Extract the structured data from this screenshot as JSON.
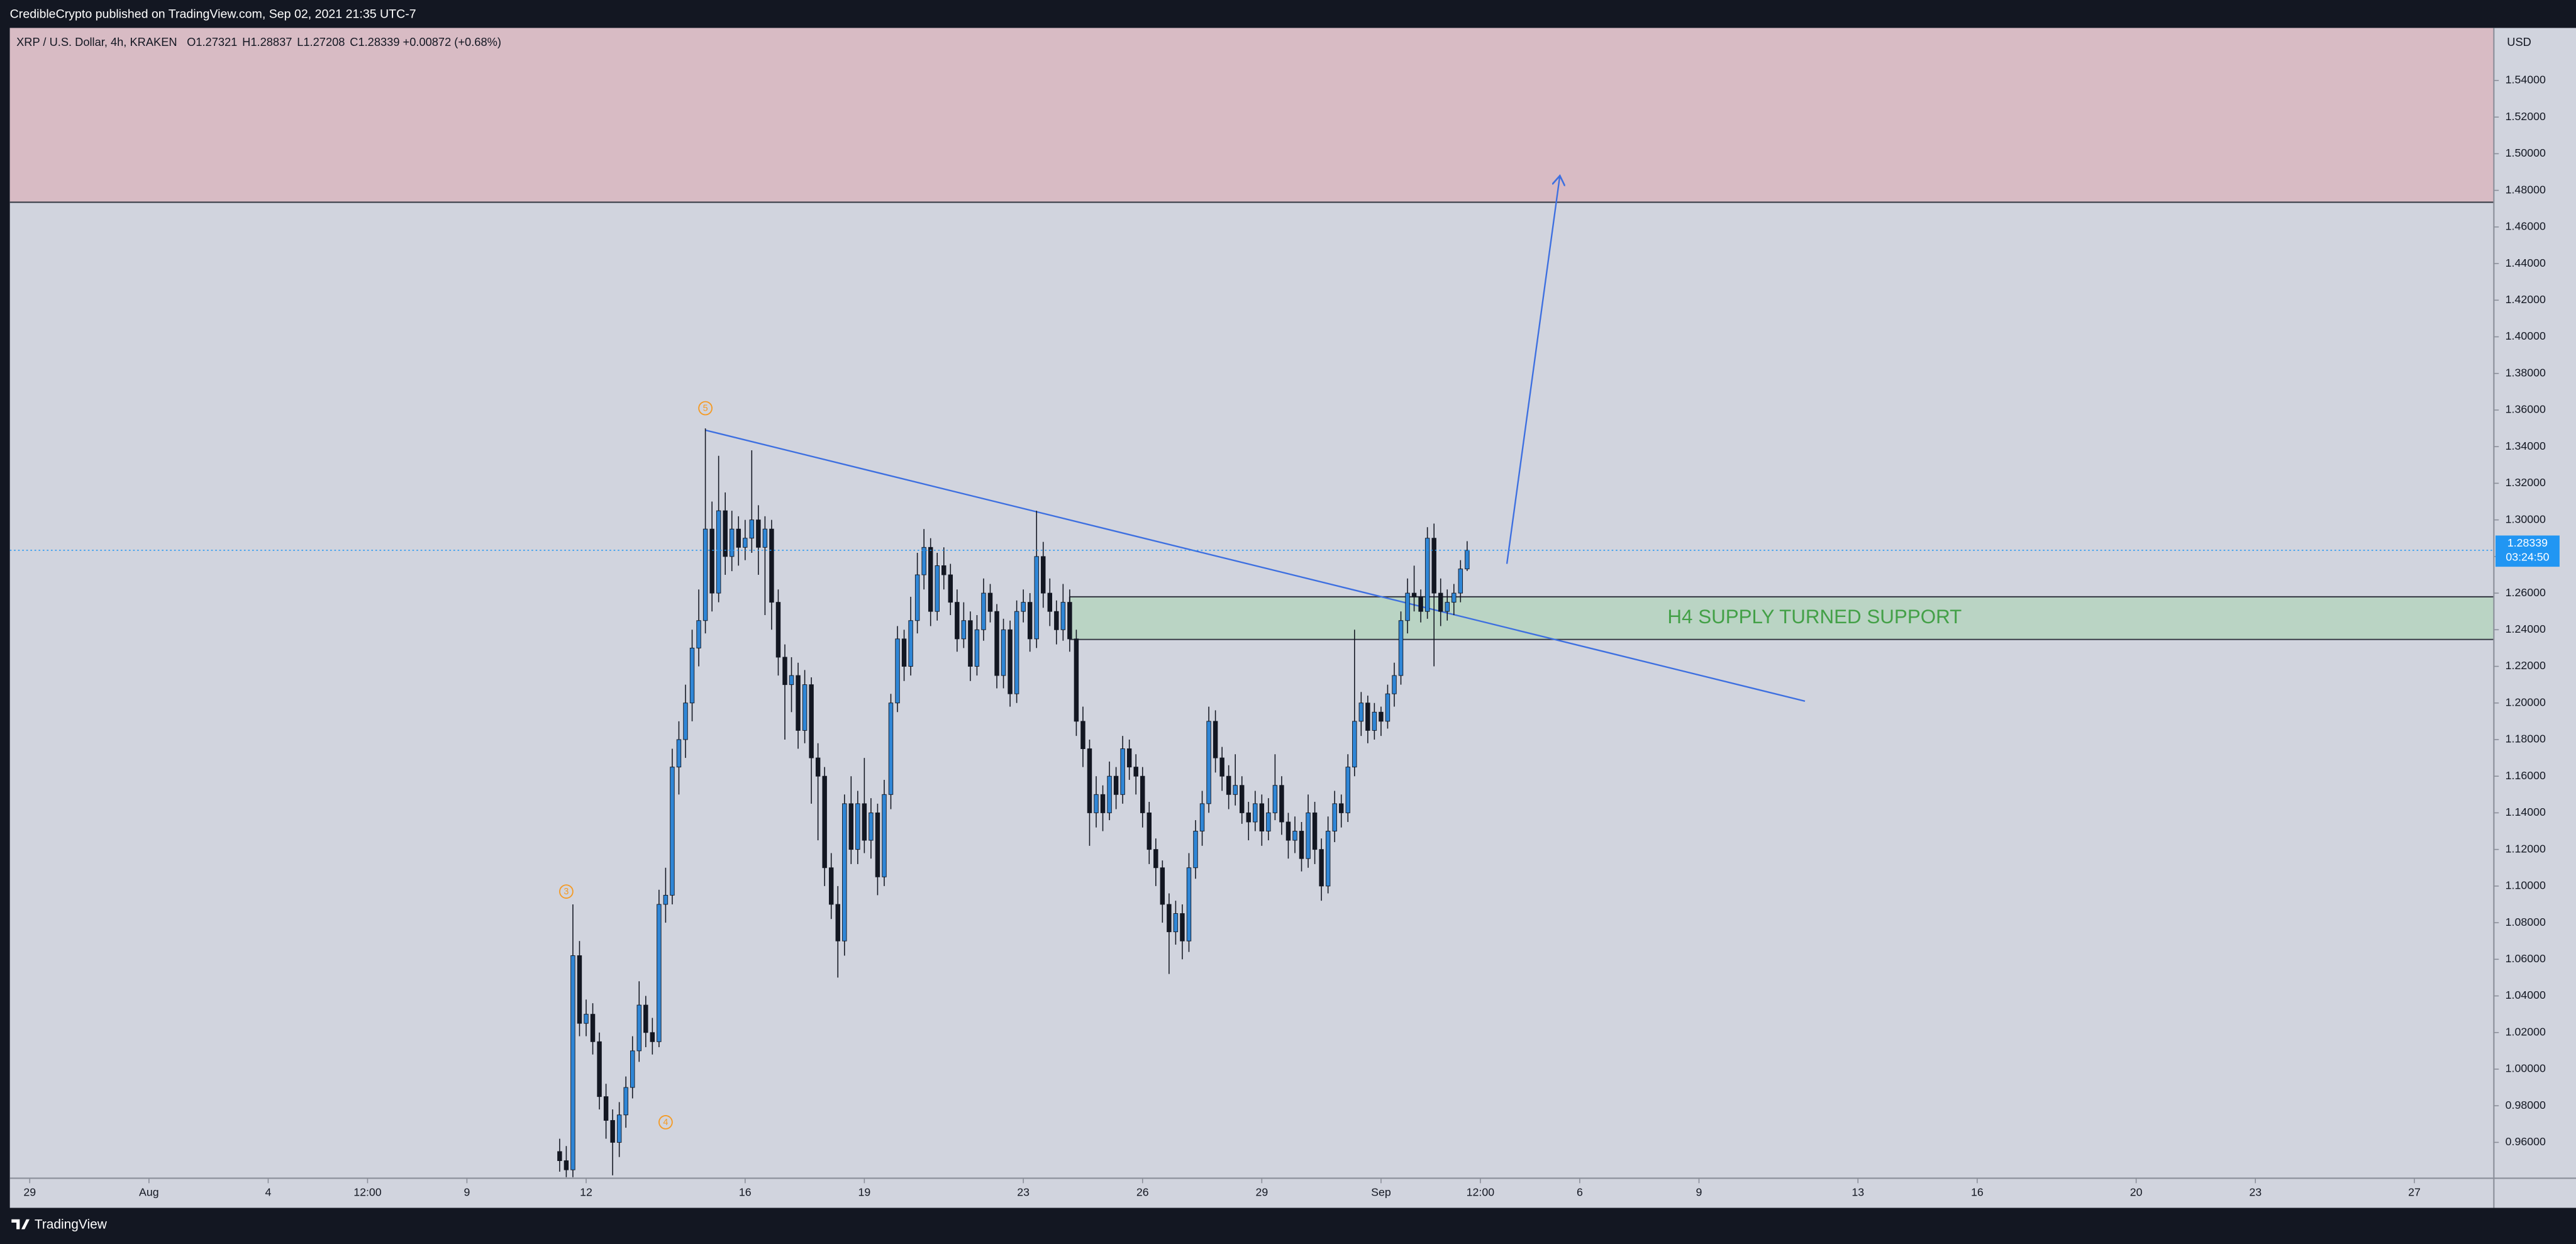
{
  "publisher_line": "CredibleCrypto published on TradingView.com, Sep 02, 2021 21:35 UTC-7",
  "footer": "TradingView",
  "chart_data": {
    "type": "candlestick",
    "symbol": "XRP / U.S. Dollar, 4h, KRAKEN",
    "ohlc_prefixes": [
      "O",
      "H",
      "L",
      "C"
    ],
    "change": "+0.00872 (+0.68%)",
    "currency": "USD",
    "countdown": "03:24:50",
    "up_color": "#2f86d6",
    "down_color": "#131722",
    "grid": false,
    "xlim": [
      "07-28 12:00",
      "09-29 00:00"
    ],
    "xticks": [
      {
        "value": "07-29 00:00",
        "label": "29"
      },
      {
        "value": "08-01 00:00",
        "label": "Aug"
      },
      {
        "value": "08-04 00:00",
        "label": "4"
      },
      {
        "value": "08-06 12:00",
        "label": "12:00"
      },
      {
        "value": "08-09 00:00",
        "label": "9"
      },
      {
        "value": "08-12 00:00",
        "label": "12"
      },
      {
        "value": "08-16 00:00",
        "label": "16"
      },
      {
        "value": "08-19 00:00",
        "label": "19"
      },
      {
        "value": "08-23 00:00",
        "label": "23"
      },
      {
        "value": "08-26 00:00",
        "label": "26"
      },
      {
        "value": "08-29 00:00",
        "label": "29"
      },
      {
        "value": "09-01 00:00",
        "label": "Sep"
      },
      {
        "value": "09-03 12:00",
        "label": "12:00"
      },
      {
        "value": "09-06 00:00",
        "label": "6"
      },
      {
        "value": "09-09 00:00",
        "label": "9"
      },
      {
        "value": "09-13 00:00",
        "label": "13"
      },
      {
        "value": "09-16 00:00",
        "label": "16"
      },
      {
        "value": "09-20 00:00",
        "label": "20"
      },
      {
        "value": "09-23 00:00",
        "label": "23"
      },
      {
        "value": "09-27 00:00",
        "label": "27"
      }
    ],
    "ylim": [
      0.9404,
      1.5687
    ],
    "yticks": [
      {
        "value": 0.96,
        "label": "0.96000"
      },
      {
        "value": 0.98,
        "label": "0.98000"
      },
      {
        "value": 1.0,
        "label": "1.00000"
      },
      {
        "value": 1.02,
        "label": "1.02000"
      },
      {
        "value": 1.04,
        "label": "1.04000"
      },
      {
        "value": 1.06,
        "label": "1.06000"
      },
      {
        "value": 1.08,
        "label": "1.08000"
      },
      {
        "value": 1.1,
        "label": "1.10000"
      },
      {
        "value": 1.12,
        "label": "1.12000"
      },
      {
        "value": 1.14,
        "label": "1.14000"
      },
      {
        "value": 1.16,
        "label": "1.16000"
      },
      {
        "value": 1.18,
        "label": "1.18000"
      },
      {
        "value": 1.2,
        "label": "1.20000"
      },
      {
        "value": 1.22,
        "label": "1.22000"
      },
      {
        "value": 1.24,
        "label": "1.24000"
      },
      {
        "value": 1.26,
        "label": "1.26000"
      },
      {
        "value": 1.28,
        "label": "1.28000"
      },
      {
        "value": 1.3,
        "label": "1.30000"
      },
      {
        "value": 1.32,
        "label": "1.32000"
      },
      {
        "value": 1.34,
        "label": "1.34000"
      },
      {
        "value": 1.36,
        "label": "1.36000"
      },
      {
        "value": 1.38,
        "label": "1.38000"
      },
      {
        "value": 1.4,
        "label": "1.40000"
      },
      {
        "value": 1.42,
        "label": "1.42000"
      },
      {
        "value": 1.44,
        "label": "1.44000"
      },
      {
        "value": 1.46,
        "label": "1.46000"
      },
      {
        "value": 1.48,
        "label": "1.48000"
      },
      {
        "value": 1.5,
        "label": "1.50000"
      },
      {
        "value": 1.52,
        "label": "1.52000"
      },
      {
        "value": 1.54,
        "label": "1.54000"
      }
    ],
    "zones": [
      {
        "y": [
          1.4735,
          1.5687
        ],
        "color": "#d8bbc4"
      },
      {
        "label": "H4 SUPPLY TURNED SUPPORT",
        "x_start": "08-24 04:00",
        "y": [
          1.2347,
          1.258
        ],
        "color": "#bad4c4"
      }
    ],
    "trendline": {
      "x": [
        "08-15 00:00",
        "09-11 16:00"
      ],
      "y": [
        1.349,
        1.201
      ],
      "color": "#3d6fe0"
    },
    "arrow": {
      "x": [
        "09-04 04:00",
        "09-05 12:00"
      ],
      "y": [
        1.276,
        1.488
      ],
      "color": "#3d6fe0"
    },
    "wave_labels": [
      {
        "label": "3",
        "x": "08-11 12:00",
        "y": 1.097
      },
      {
        "label": "4",
        "x": "08-14 00:00",
        "y": 0.971
      },
      {
        "label": "5",
        "x": "08-15 00:00",
        "y": 1.361
      }
    ],
    "x": [
      "08-11 08:00",
      "08-11 12:00",
      "08-11 16:00",
      "08-11 20:00",
      "08-12 00:00",
      "08-12 04:00",
      "08-12 08:00",
      "08-12 12:00",
      "08-12 16:00",
      "08-12 20:00",
      "08-13 00:00",
      "08-13 04:00",
      "08-13 08:00",
      "08-13 12:00",
      "08-13 16:00",
      "08-13 20:00",
      "08-14 00:00",
      "08-14 04:00",
      "08-14 08:00",
      "08-14 12:00",
      "08-14 16:00",
      "08-14 20:00",
      "08-15 00:00",
      "08-15 04:00",
      "08-15 08:00",
      "08-15 12:00",
      "08-15 16:00",
      "08-15 20:00",
      "08-16 00:00",
      "08-16 04:00",
      "08-16 08:00",
      "08-16 12:00",
      "08-16 16:00",
      "08-16 20:00",
      "08-17 00:00",
      "08-17 04:00",
      "08-17 08:00",
      "08-17 12:00",
      "08-17 16:00",
      "08-17 20:00",
      "08-18 00:00",
      "08-18 04:00",
      "08-18 08:00",
      "08-18 12:00",
      "08-18 16:00",
      "08-18 20:00",
      "08-19 00:00",
      "08-19 04:00",
      "08-19 08:00",
      "08-19 12:00",
      "08-19 16:00",
      "08-19 20:00",
      "08-20 00:00",
      "08-20 04:00",
      "08-20 08:00",
      "08-20 12:00",
      "08-20 16:00",
      "08-20 20:00",
      "08-21 00:00",
      "08-21 04:00",
      "08-21 08:00",
      "08-21 12:00",
      "08-21 16:00",
      "08-21 20:00",
      "08-22 00:00",
      "08-22 04:00",
      "08-22 08:00",
      "08-22 12:00",
      "08-22 16:00",
      "08-22 20:00",
      "08-23 00:00",
      "08-23 04:00",
      "08-23 08:00",
      "08-23 12:00",
      "08-23 16:00",
      "08-23 20:00",
      "08-24 00:00",
      "08-24 04:00",
      "08-24 08:00",
      "08-24 12:00",
      "08-24 16:00",
      "08-24 20:00",
      "08-25 00:00",
      "08-25 04:00",
      "08-25 08:00",
      "08-25 12:00",
      "08-25 16:00",
      "08-25 20:00",
      "08-26 00:00",
      "08-26 04:00",
      "08-26 08:00",
      "08-26 12:00",
      "08-26 16:00",
      "08-26 20:00",
      "08-27 00:00",
      "08-27 04:00",
      "08-27 08:00",
      "08-27 12:00",
      "08-27 16:00",
      "08-27 20:00",
      "08-28 00:00",
      "08-28 04:00",
      "08-28 08:00",
      "08-28 12:00",
      "08-28 16:00",
      "08-28 20:00",
      "08-29 00:00",
      "08-29 04:00",
      "08-29 08:00",
      "08-29 12:00",
      "08-29 16:00",
      "08-29 20:00",
      "08-30 00:00",
      "08-30 04:00",
      "08-30 08:00",
      "08-30 12:00",
      "08-30 16:00",
      "08-30 20:00",
      "08-31 00:00",
      "08-31 04:00",
      "08-31 08:00",
      "08-31 12:00",
      "08-31 16:00",
      "08-31 20:00",
      "09-01 00:00",
      "09-01 04:00",
      "09-01 08:00",
      "09-01 12:00",
      "09-01 16:00",
      "09-01 20:00",
      "09-02 00:00",
      "09-02 04:00",
      "09-02 08:00",
      "09-02 12:00",
      "09-02 16:00",
      "09-02 20:00",
      "09-03 00:00",
      "09-03 04:00"
    ],
    "candles": [
      [
        0.955,
        0.962,
        0.944,
        0.95
      ],
      [
        0.95,
        0.958,
        0.941,
        0.945
      ],
      [
        0.945,
        1.09,
        0.941,
        1.062
      ],
      [
        1.062,
        1.07,
        1.018,
        1.025
      ],
      [
        1.025,
        1.038,
        1.018,
        1.03
      ],
      [
        1.03,
        1.036,
        1.008,
        1.015
      ],
      [
        1.015,
        1.02,
        0.978,
        0.985
      ],
      [
        0.985,
        0.992,
        0.962,
        0.972
      ],
      [
        0.972,
        0.978,
        0.942,
        0.96
      ],
      [
        0.96,
        0.982,
        0.952,
        0.975
      ],
      [
        0.975,
        0.996,
        0.968,
        0.99
      ],
      [
        0.99,
        1.018,
        0.984,
        1.01
      ],
      [
        1.01,
        1.048,
        1.004,
        1.035
      ],
      [
        1.035,
        1.04,
        1.012,
        1.02
      ],
      [
        1.02,
        1.028,
        1.008,
        1.015
      ],
      [
        1.015,
        1.098,
        1.012,
        1.09
      ],
      [
        1.09,
        1.11,
        1.08,
        1.095
      ],
      [
        1.095,
        1.175,
        1.09,
        1.165
      ],
      [
        1.165,
        1.19,
        1.15,
        1.18
      ],
      [
        1.18,
        1.21,
        1.17,
        1.2
      ],
      [
        1.2,
        1.24,
        1.19,
        1.23
      ],
      [
        1.23,
        1.262,
        1.22,
        1.245
      ],
      [
        1.245,
        1.35,
        1.238,
        1.295
      ],
      [
        1.295,
        1.31,
        1.25,
        1.26
      ],
      [
        1.26,
        1.335,
        1.255,
        1.305
      ],
      [
        1.305,
        1.315,
        1.27,
        1.28
      ],
      [
        1.28,
        1.305,
        1.272,
        1.295
      ],
      [
        1.295,
        1.302,
        1.275,
        1.285
      ],
      [
        1.285,
        1.3,
        1.278,
        1.29
      ],
      [
        1.29,
        1.338,
        1.282,
        1.3
      ],
      [
        1.3,
        1.308,
        1.27,
        1.285
      ],
      [
        1.285,
        1.302,
        1.248,
        1.295
      ],
      [
        1.295,
        1.3,
        1.24,
        1.255
      ],
      [
        1.255,
        1.262,
        1.215,
        1.225
      ],
      [
        1.225,
        1.232,
        1.18,
        1.21
      ],
      [
        1.21,
        1.225,
        1.195,
        1.215
      ],
      [
        1.215,
        1.222,
        1.175,
        1.185
      ],
      [
        1.185,
        1.218,
        1.178,
        1.21
      ],
      [
        1.21,
        1.214,
        1.145,
        1.17
      ],
      [
        1.17,
        1.178,
        1.125,
        1.16
      ],
      [
        1.16,
        1.165,
        1.1,
        1.11
      ],
      [
        1.11,
        1.118,
        1.082,
        1.09
      ],
      [
        1.09,
        1.1,
        1.05,
        1.07
      ],
      [
        1.07,
        1.15,
        1.062,
        1.145
      ],
      [
        1.145,
        1.16,
        1.112,
        1.12
      ],
      [
        1.12,
        1.152,
        1.112,
        1.145
      ],
      [
        1.145,
        1.17,
        1.118,
        1.125
      ],
      [
        1.125,
        1.148,
        1.115,
        1.14
      ],
      [
        1.14,
        1.145,
        1.095,
        1.105
      ],
      [
        1.105,
        1.158,
        1.1,
        1.15
      ],
      [
        1.15,
        1.205,
        1.142,
        1.2
      ],
      [
        1.2,
        1.242,
        1.195,
        1.235
      ],
      [
        1.235,
        1.24,
        1.212,
        1.22
      ],
      [
        1.22,
        1.258,
        1.215,
        1.245
      ],
      [
        1.245,
        1.282,
        1.238,
        1.27
      ],
      [
        1.27,
        1.295,
        1.262,
        1.285
      ],
      [
        1.285,
        1.29,
        1.242,
        1.25
      ],
      [
        1.25,
        1.282,
        1.245,
        1.275
      ],
      [
        1.275,
        1.285,
        1.262,
        1.27
      ],
      [
        1.27,
        1.276,
        1.248,
        1.255
      ],
      [
        1.255,
        1.262,
        1.228,
        1.235
      ],
      [
        1.235,
        1.255,
        1.23,
        1.245
      ],
      [
        1.245,
        1.25,
        1.212,
        1.22
      ],
      [
        1.22,
        1.248,
        1.215,
        1.24
      ],
      [
        1.24,
        1.268,
        1.234,
        1.26
      ],
      [
        1.26,
        1.265,
        1.244,
        1.25
      ],
      [
        1.25,
        1.254,
        1.208,
        1.215
      ],
      [
        1.215,
        1.246,
        1.208,
        1.24
      ],
      [
        1.24,
        1.245,
        1.198,
        1.205
      ],
      [
        1.205,
        1.256,
        1.2,
        1.25
      ],
      [
        1.25,
        1.262,
        1.244,
        1.255
      ],
      [
        1.255,
        1.26,
        1.228,
        1.235
      ],
      [
        1.235,
        1.305,
        1.23,
        1.28
      ],
      [
        1.28,
        1.288,
        1.252,
        1.26
      ],
      [
        1.26,
        1.268,
        1.242,
        1.25
      ],
      [
        1.25,
        1.256,
        1.232,
        1.24
      ],
      [
        1.24,
        1.265,
        1.234,
        1.255
      ],
      [
        1.255,
        1.262,
        1.228,
        1.235
      ],
      [
        1.235,
        1.24,
        1.182,
        1.19
      ],
      [
        1.19,
        1.198,
        1.165,
        1.175
      ],
      [
        1.175,
        1.18,
        1.122,
        1.14
      ],
      [
        1.14,
        1.16,
        1.132,
        1.15
      ],
      [
        1.15,
        1.155,
        1.13,
        1.14
      ],
      [
        1.14,
        1.168,
        1.136,
        1.16
      ],
      [
        1.16,
        1.165,
        1.142,
        1.15
      ],
      [
        1.15,
        1.182,
        1.145,
        1.175
      ],
      [
        1.175,
        1.18,
        1.158,
        1.165
      ],
      [
        1.165,
        1.172,
        1.15,
        1.16
      ],
      [
        1.16,
        1.165,
        1.132,
        1.14
      ],
      [
        1.14,
        1.146,
        1.112,
        1.12
      ],
      [
        1.12,
        1.126,
        1.1,
        1.11
      ],
      [
        1.11,
        1.114,
        1.08,
        1.09
      ],
      [
        1.09,
        1.096,
        1.052,
        1.075
      ],
      [
        1.075,
        1.092,
        1.068,
        1.085
      ],
      [
        1.085,
        1.09,
        1.06,
        1.07
      ],
      [
        1.07,
        1.118,
        1.064,
        1.11
      ],
      [
        1.11,
        1.136,
        1.104,
        1.13
      ],
      [
        1.13,
        1.152,
        1.122,
        1.145
      ],
      [
        1.145,
        1.198,
        1.14,
        1.19
      ],
      [
        1.19,
        1.196,
        1.162,
        1.17
      ],
      [
        1.17,
        1.176,
        1.152,
        1.16
      ],
      [
        1.16,
        1.166,
        1.142,
        1.15
      ],
      [
        1.15,
        1.172,
        1.144,
        1.155
      ],
      [
        1.155,
        1.16,
        1.134,
        1.14
      ],
      [
        1.14,
        1.146,
        1.125,
        1.135
      ],
      [
        1.135,
        1.152,
        1.13,
        1.145
      ],
      [
        1.145,
        1.15,
        1.122,
        1.13
      ],
      [
        1.13,
        1.148,
        1.125,
        1.14
      ],
      [
        1.14,
        1.172,
        1.136,
        1.155
      ],
      [
        1.155,
        1.16,
        1.128,
        1.135
      ],
      [
        1.135,
        1.14,
        1.115,
        1.125
      ],
      [
        1.125,
        1.138,
        1.118,
        1.13
      ],
      [
        1.13,
        1.135,
        1.108,
        1.115
      ],
      [
        1.115,
        1.15,
        1.11,
        1.14
      ],
      [
        1.14,
        1.146,
        1.112,
        1.12
      ],
      [
        1.12,
        1.126,
        1.092,
        1.1
      ],
      [
        1.1,
        1.138,
        1.096,
        1.13
      ],
      [
        1.13,
        1.152,
        1.124,
        1.145
      ],
      [
        1.145,
        1.15,
        1.132,
        1.14
      ],
      [
        1.14,
        1.172,
        1.135,
        1.165
      ],
      [
        1.165,
        1.24,
        1.16,
        1.19
      ],
      [
        1.19,
        1.206,
        1.182,
        1.2
      ],
      [
        1.2,
        1.204,
        1.178,
        1.185
      ],
      [
        1.185,
        1.2,
        1.18,
        1.195
      ],
      [
        1.195,
        1.198,
        1.182,
        1.19
      ],
      [
        1.19,
        1.21,
        1.186,
        1.205
      ],
      [
        1.205,
        1.222,
        1.198,
        1.215
      ],
      [
        1.215,
        1.25,
        1.21,
        1.245
      ],
      [
        1.245,
        1.268,
        1.238,
        1.26
      ],
      [
        1.26,
        1.275,
        1.25,
        1.258
      ],
      [
        1.258,
        1.262,
        1.244,
        1.25
      ],
      [
        1.25,
        1.296,
        1.246,
        1.29
      ],
      [
        1.29,
        1.298,
        1.22,
        1.26
      ],
      [
        1.26,
        1.268,
        1.242,
        1.25
      ],
      [
        1.25,
        1.262,
        1.245,
        1.255
      ],
      [
        1.255,
        1.265,
        1.248,
        1.26
      ],
      [
        1.26,
        1.278,
        1.255,
        1.27321
      ],
      [
        1.27321,
        1.28837,
        1.27208,
        1.28339
      ]
    ]
  }
}
